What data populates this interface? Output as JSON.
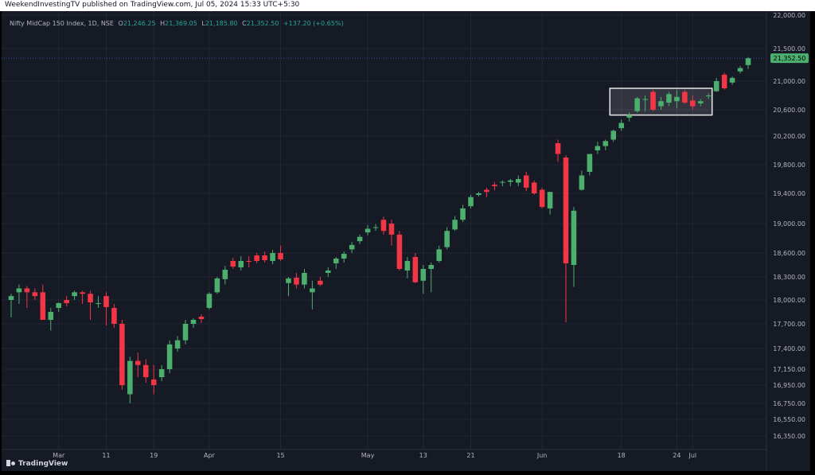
{
  "header": {
    "published": "WeekendInvestingTV published on TradingView.com, Jul 05, 2024 15:33 UTC+5:30"
  },
  "legend": {
    "symbol": "Nifty MidCap 150 Index, 1D, NSE",
    "open_label": "O",
    "open": "21,246.25",
    "high_label": "H",
    "high": "21,369.05",
    "low_label": "L",
    "low": "21,185.80",
    "close_label": "C",
    "close": "21,352.50",
    "change": "+137.20 (+0.65%)"
  },
  "brand": {
    "name": "TradingView",
    "icon": "tradingview-logo-icon"
  },
  "colors": {
    "up": "#4caf6e",
    "down": "#f23645",
    "background": "#161a25",
    "grid": "#222734",
    "price_line": "#3949ab",
    "price_badge": "#4caf6e"
  },
  "chart_data": {
    "type": "candlestick",
    "last_price": 21352.5,
    "last_price_label": "21,352.50",
    "y_axis_ticks": [
      {
        "value": 16350,
        "label": "16,350.00"
      },
      {
        "value": 16550,
        "label": "16,550.00"
      },
      {
        "value": 16750,
        "label": "16,750.00"
      },
      {
        "value": 16950,
        "label": "16,950.00"
      },
      {
        "value": 17150,
        "label": "17,150.00"
      },
      {
        "value": 17400,
        "label": "17,400.00"
      },
      {
        "value": 17700,
        "label": "17,700.00"
      },
      {
        "value": 18000,
        "label": "18,000.00"
      },
      {
        "value": 18300,
        "label": "18,300.00"
      },
      {
        "value": 18600,
        "label": "18,600.00"
      },
      {
        "value": 19000,
        "label": "19,000.00"
      },
      {
        "value": 19400,
        "label": "19,400.00"
      },
      {
        "value": 19800,
        "label": "19,800.00"
      },
      {
        "value": 20200,
        "label": "20,200.00"
      },
      {
        "value": 20600,
        "label": "20,600.00"
      },
      {
        "value": 21000,
        "label": "21,000.00"
      },
      {
        "value": 21500,
        "label": "21,500.00"
      },
      {
        "value": 22000,
        "label": "22,000.00"
      }
    ],
    "x_axis_ticks": [
      {
        "index": 6,
        "label": "Mar"
      },
      {
        "index": 12,
        "label": "11"
      },
      {
        "index": 18,
        "label": "19"
      },
      {
        "index": 25,
        "label": "Apr"
      },
      {
        "index": 34,
        "label": "15"
      },
      {
        "index": 45,
        "label": "May"
      },
      {
        "index": 52,
        "label": "13"
      },
      {
        "index": 58,
        "label": "21"
      },
      {
        "index": 67,
        "label": "Jun"
      },
      {
        "index": 77,
        "label": "18"
      },
      {
        "index": 84,
        "label": "24"
      },
      {
        "index": 86,
        "label": "Jul"
      }
    ],
    "annotation_box": {
      "start_index": 76,
      "end_index": 88,
      "low": 20520,
      "high": 20900
    },
    "candles": [
      {
        "o": 18000,
        "h": 18080,
        "l": 17780,
        "c": 18050
      },
      {
        "o": 18100,
        "h": 18200,
        "l": 17950,
        "c": 18150
      },
      {
        "o": 18150,
        "h": 18180,
        "l": 17900,
        "c": 18100
      },
      {
        "o": 18100,
        "h": 18150,
        "l": 18000,
        "c": 18050
      },
      {
        "o": 18100,
        "h": 18200,
        "l": 17750,
        "c": 17750
      },
      {
        "o": 17750,
        "h": 17900,
        "l": 17620,
        "c": 17850
      },
      {
        "o": 17900,
        "h": 17970,
        "l": 17850,
        "c": 17960
      },
      {
        "o": 18000,
        "h": 18050,
        "l": 17920,
        "c": 17960
      },
      {
        "o": 18050,
        "h": 18120,
        "l": 18000,
        "c": 18100
      },
      {
        "o": 18100,
        "h": 18120,
        "l": 17950,
        "c": 18080
      },
      {
        "o": 18080,
        "h": 18120,
        "l": 17750,
        "c": 17970
      },
      {
        "o": 17950,
        "h": 18050,
        "l": 17900,
        "c": 17960
      },
      {
        "o": 18050,
        "h": 18100,
        "l": 17680,
        "c": 17910
      },
      {
        "o": 17900,
        "h": 17950,
        "l": 17650,
        "c": 17700
      },
      {
        "o": 17700,
        "h": 17750,
        "l": 16900,
        "c": 16950
      },
      {
        "o": 16850,
        "h": 17300,
        "l": 16750,
        "c": 17250
      },
      {
        "o": 17250,
        "h": 17350,
        "l": 17050,
        "c": 17200
      },
      {
        "o": 17200,
        "h": 17270,
        "l": 16980,
        "c": 17050
      },
      {
        "o": 17020,
        "h": 17200,
        "l": 16850,
        "c": 16950
      },
      {
        "o": 17050,
        "h": 17200,
        "l": 17000,
        "c": 17150
      },
      {
        "o": 17150,
        "h": 17500,
        "l": 17100,
        "c": 17450
      },
      {
        "o": 17400,
        "h": 17550,
        "l": 17360,
        "c": 17500
      },
      {
        "o": 17500,
        "h": 17750,
        "l": 17450,
        "c": 17700
      },
      {
        "o": 17700,
        "h": 17770,
        "l": 17650,
        "c": 17750
      },
      {
        "o": 17790,
        "h": 17820,
        "l": 17710,
        "c": 17760
      },
      {
        "o": 17900,
        "h": 18100,
        "l": 17880,
        "c": 18080
      },
      {
        "o": 18100,
        "h": 18300,
        "l": 18080,
        "c": 18280
      },
      {
        "o": 18270,
        "h": 18440,
        "l": 18200,
        "c": 18390
      },
      {
        "o": 18500,
        "h": 18540,
        "l": 18400,
        "c": 18430
      },
      {
        "o": 18420,
        "h": 18560,
        "l": 18380,
        "c": 18500
      },
      {
        "o": 18500,
        "h": 18560,
        "l": 18420,
        "c": 18490
      },
      {
        "o": 18570,
        "h": 18600,
        "l": 18470,
        "c": 18500
      },
      {
        "o": 18570,
        "h": 18620,
        "l": 18480,
        "c": 18510
      },
      {
        "o": 18500,
        "h": 18640,
        "l": 18460,
        "c": 18600
      },
      {
        "o": 18600,
        "h": 18700,
        "l": 18500,
        "c": 18520
      },
      {
        "o": 18220,
        "h": 18300,
        "l": 18050,
        "c": 18280
      },
      {
        "o": 18290,
        "h": 18350,
        "l": 18150,
        "c": 18200
      },
      {
        "o": 18200,
        "h": 18400,
        "l": 18150,
        "c": 18350
      },
      {
        "o": 18100,
        "h": 18250,
        "l": 17880,
        "c": 18150
      },
      {
        "o": 18250,
        "h": 18300,
        "l": 18180,
        "c": 18200
      },
      {
        "o": 18350,
        "h": 18420,
        "l": 18300,
        "c": 18380
      },
      {
        "o": 18470,
        "h": 18550,
        "l": 18400,
        "c": 18530
      },
      {
        "o": 18530,
        "h": 18620,
        "l": 18480,
        "c": 18590
      },
      {
        "o": 18650,
        "h": 18750,
        "l": 18600,
        "c": 18710
      },
      {
        "o": 18760,
        "h": 18850,
        "l": 18720,
        "c": 18820
      },
      {
        "o": 18880,
        "h": 18980,
        "l": 18840,
        "c": 18930
      },
      {
        "o": 18950,
        "h": 18990,
        "l": 18900,
        "c": 18950
      },
      {
        "o": 19050,
        "h": 19090,
        "l": 18850,
        "c": 18900
      },
      {
        "o": 19000,
        "h": 19050,
        "l": 18700,
        "c": 18850
      },
      {
        "o": 18850,
        "h": 18900,
        "l": 18380,
        "c": 18400
      },
      {
        "o": 18380,
        "h": 18550,
        "l": 18280,
        "c": 18500
      },
      {
        "o": 18550,
        "h": 18600,
        "l": 18220,
        "c": 18230
      },
      {
        "o": 18250,
        "h": 18450,
        "l": 18080,
        "c": 18400
      },
      {
        "o": 18400,
        "h": 18480,
        "l": 18100,
        "c": 18450
      },
      {
        "o": 18500,
        "h": 18700,
        "l": 18480,
        "c": 18650
      },
      {
        "o": 18680,
        "h": 18950,
        "l": 18650,
        "c": 18900
      },
      {
        "o": 18920,
        "h": 19100,
        "l": 18900,
        "c": 19050
      },
      {
        "o": 19050,
        "h": 19250,
        "l": 19020,
        "c": 19200
      },
      {
        "o": 19230,
        "h": 19380,
        "l": 19200,
        "c": 19350
      },
      {
        "o": 19380,
        "h": 19420,
        "l": 19360,
        "c": 19400
      },
      {
        "o": 19450,
        "h": 19480,
        "l": 19350,
        "c": 19420
      },
      {
        "o": 19520,
        "h": 19560,
        "l": 19440,
        "c": 19500
      },
      {
        "o": 19550,
        "h": 19580,
        "l": 19500,
        "c": 19560
      },
      {
        "o": 19560,
        "h": 19600,
        "l": 19500,
        "c": 19580
      },
      {
        "o": 19550,
        "h": 19650,
        "l": 19500,
        "c": 19600
      },
      {
        "o": 19650,
        "h": 19700,
        "l": 19430,
        "c": 19480
      },
      {
        "o": 19550,
        "h": 19580,
        "l": 19380,
        "c": 19400
      },
      {
        "o": 19450,
        "h": 19480,
        "l": 19200,
        "c": 19220
      },
      {
        "o": 19200,
        "h": 19420,
        "l": 19120,
        "c": 19420
      },
      {
        "o": 20100,
        "h": 20150,
        "l": 19840,
        "c": 19950
      },
      {
        "o": 19900,
        "h": 19930,
        "l": 17720,
        "c": 18470
      },
      {
        "o": 18450,
        "h": 19220,
        "l": 18170,
        "c": 19170
      },
      {
        "o": 19450,
        "h": 19720,
        "l": 19440,
        "c": 19650
      },
      {
        "o": 19700,
        "h": 19950,
        "l": 19650,
        "c": 19950
      },
      {
        "o": 20000,
        "h": 20120,
        "l": 19950,
        "c": 20060
      },
      {
        "o": 20060,
        "h": 20150,
        "l": 20000,
        "c": 20130
      },
      {
        "o": 20150,
        "h": 20300,
        "l": 20120,
        "c": 20280
      },
      {
        "o": 20320,
        "h": 20450,
        "l": 20280,
        "c": 20400
      },
      {
        "o": 20480,
        "h": 20560,
        "l": 20420,
        "c": 20520
      },
      {
        "o": 20580,
        "h": 20780,
        "l": 20560,
        "c": 20760
      },
      {
        "o": 20740,
        "h": 20800,
        "l": 20580,
        "c": 20750
      },
      {
        "o": 20850,
        "h": 20880,
        "l": 20580,
        "c": 20600
      },
      {
        "o": 20650,
        "h": 20780,
        "l": 20600,
        "c": 20720
      },
      {
        "o": 20700,
        "h": 20850,
        "l": 20650,
        "c": 20820
      },
      {
        "o": 20720,
        "h": 20880,
        "l": 20620,
        "c": 20780
      },
      {
        "o": 20850,
        "h": 20880,
        "l": 20680,
        "c": 20700
      },
      {
        "o": 20730,
        "h": 20800,
        "l": 20600,
        "c": 20650
      },
      {
        "o": 20690,
        "h": 20750,
        "l": 20650,
        "c": 20720
      },
      {
        "o": 20800,
        "h": 20830,
        "l": 20750,
        "c": 20800
      },
      {
        "o": 20860,
        "h": 21050,
        "l": 20850,
        "c": 21000
      },
      {
        "o": 21100,
        "h": 21130,
        "l": 20880,
        "c": 20900
      },
      {
        "o": 20980,
        "h": 21070,
        "l": 20950,
        "c": 21050
      },
      {
        "o": 21150,
        "h": 21230,
        "l": 21120,
        "c": 21200
      },
      {
        "o": 21246.25,
        "h": 21369.05,
        "l": 21185.8,
        "c": 21352.5
      }
    ]
  }
}
